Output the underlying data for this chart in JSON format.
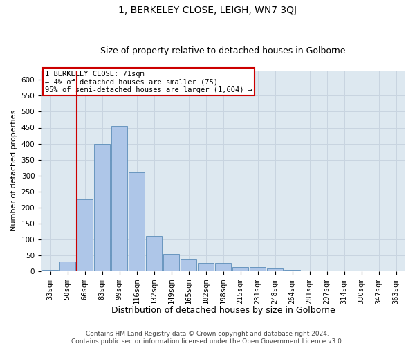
{
  "title": "1, BERKELEY CLOSE, LEIGH, WN7 3QJ",
  "subtitle": "Size of property relative to detached houses in Golborne",
  "xlabel": "Distribution of detached houses by size in Golborne",
  "ylabel": "Number of detached properties",
  "footer_line1": "Contains HM Land Registry data © Crown copyright and database right 2024.",
  "footer_line2": "Contains public sector information licensed under the Open Government Licence v3.0.",
  "bar_labels": [
    "33sqm",
    "50sqm",
    "66sqm",
    "83sqm",
    "99sqm",
    "116sqm",
    "132sqm",
    "149sqm",
    "165sqm",
    "182sqm",
    "198sqm",
    "215sqm",
    "231sqm",
    "248sqm",
    "264sqm",
    "281sqm",
    "297sqm",
    "314sqm",
    "330sqm",
    "347sqm",
    "363sqm"
  ],
  "bar_values": [
    5,
    30,
    225,
    400,
    455,
    310,
    110,
    55,
    40,
    27,
    27,
    13,
    13,
    8,
    5,
    0,
    0,
    0,
    2,
    0,
    2
  ],
  "bar_color": "#aec6e8",
  "bar_edge_color": "#5b8db8",
  "vline_color": "#cc0000",
  "annotation_text": "1 BERKELEY CLOSE: 71sqm\n← 4% of detached houses are smaller (75)\n95% of semi-detached houses are larger (1,604) →",
  "annotation_box_color": "white",
  "annotation_box_edge_color": "#cc0000",
  "ylim": [
    0,
    630
  ],
  "yticks": [
    0,
    50,
    100,
    150,
    200,
    250,
    300,
    350,
    400,
    450,
    500,
    550,
    600
  ],
  "grid_color": "#c8d4e0",
  "background_color": "#dde8f0",
  "title_fontsize": 10,
  "subtitle_fontsize": 9,
  "xlabel_fontsize": 9,
  "ylabel_fontsize": 8,
  "tick_fontsize": 7.5,
  "annotation_fontsize": 7.5,
  "footer_fontsize": 6.5
}
